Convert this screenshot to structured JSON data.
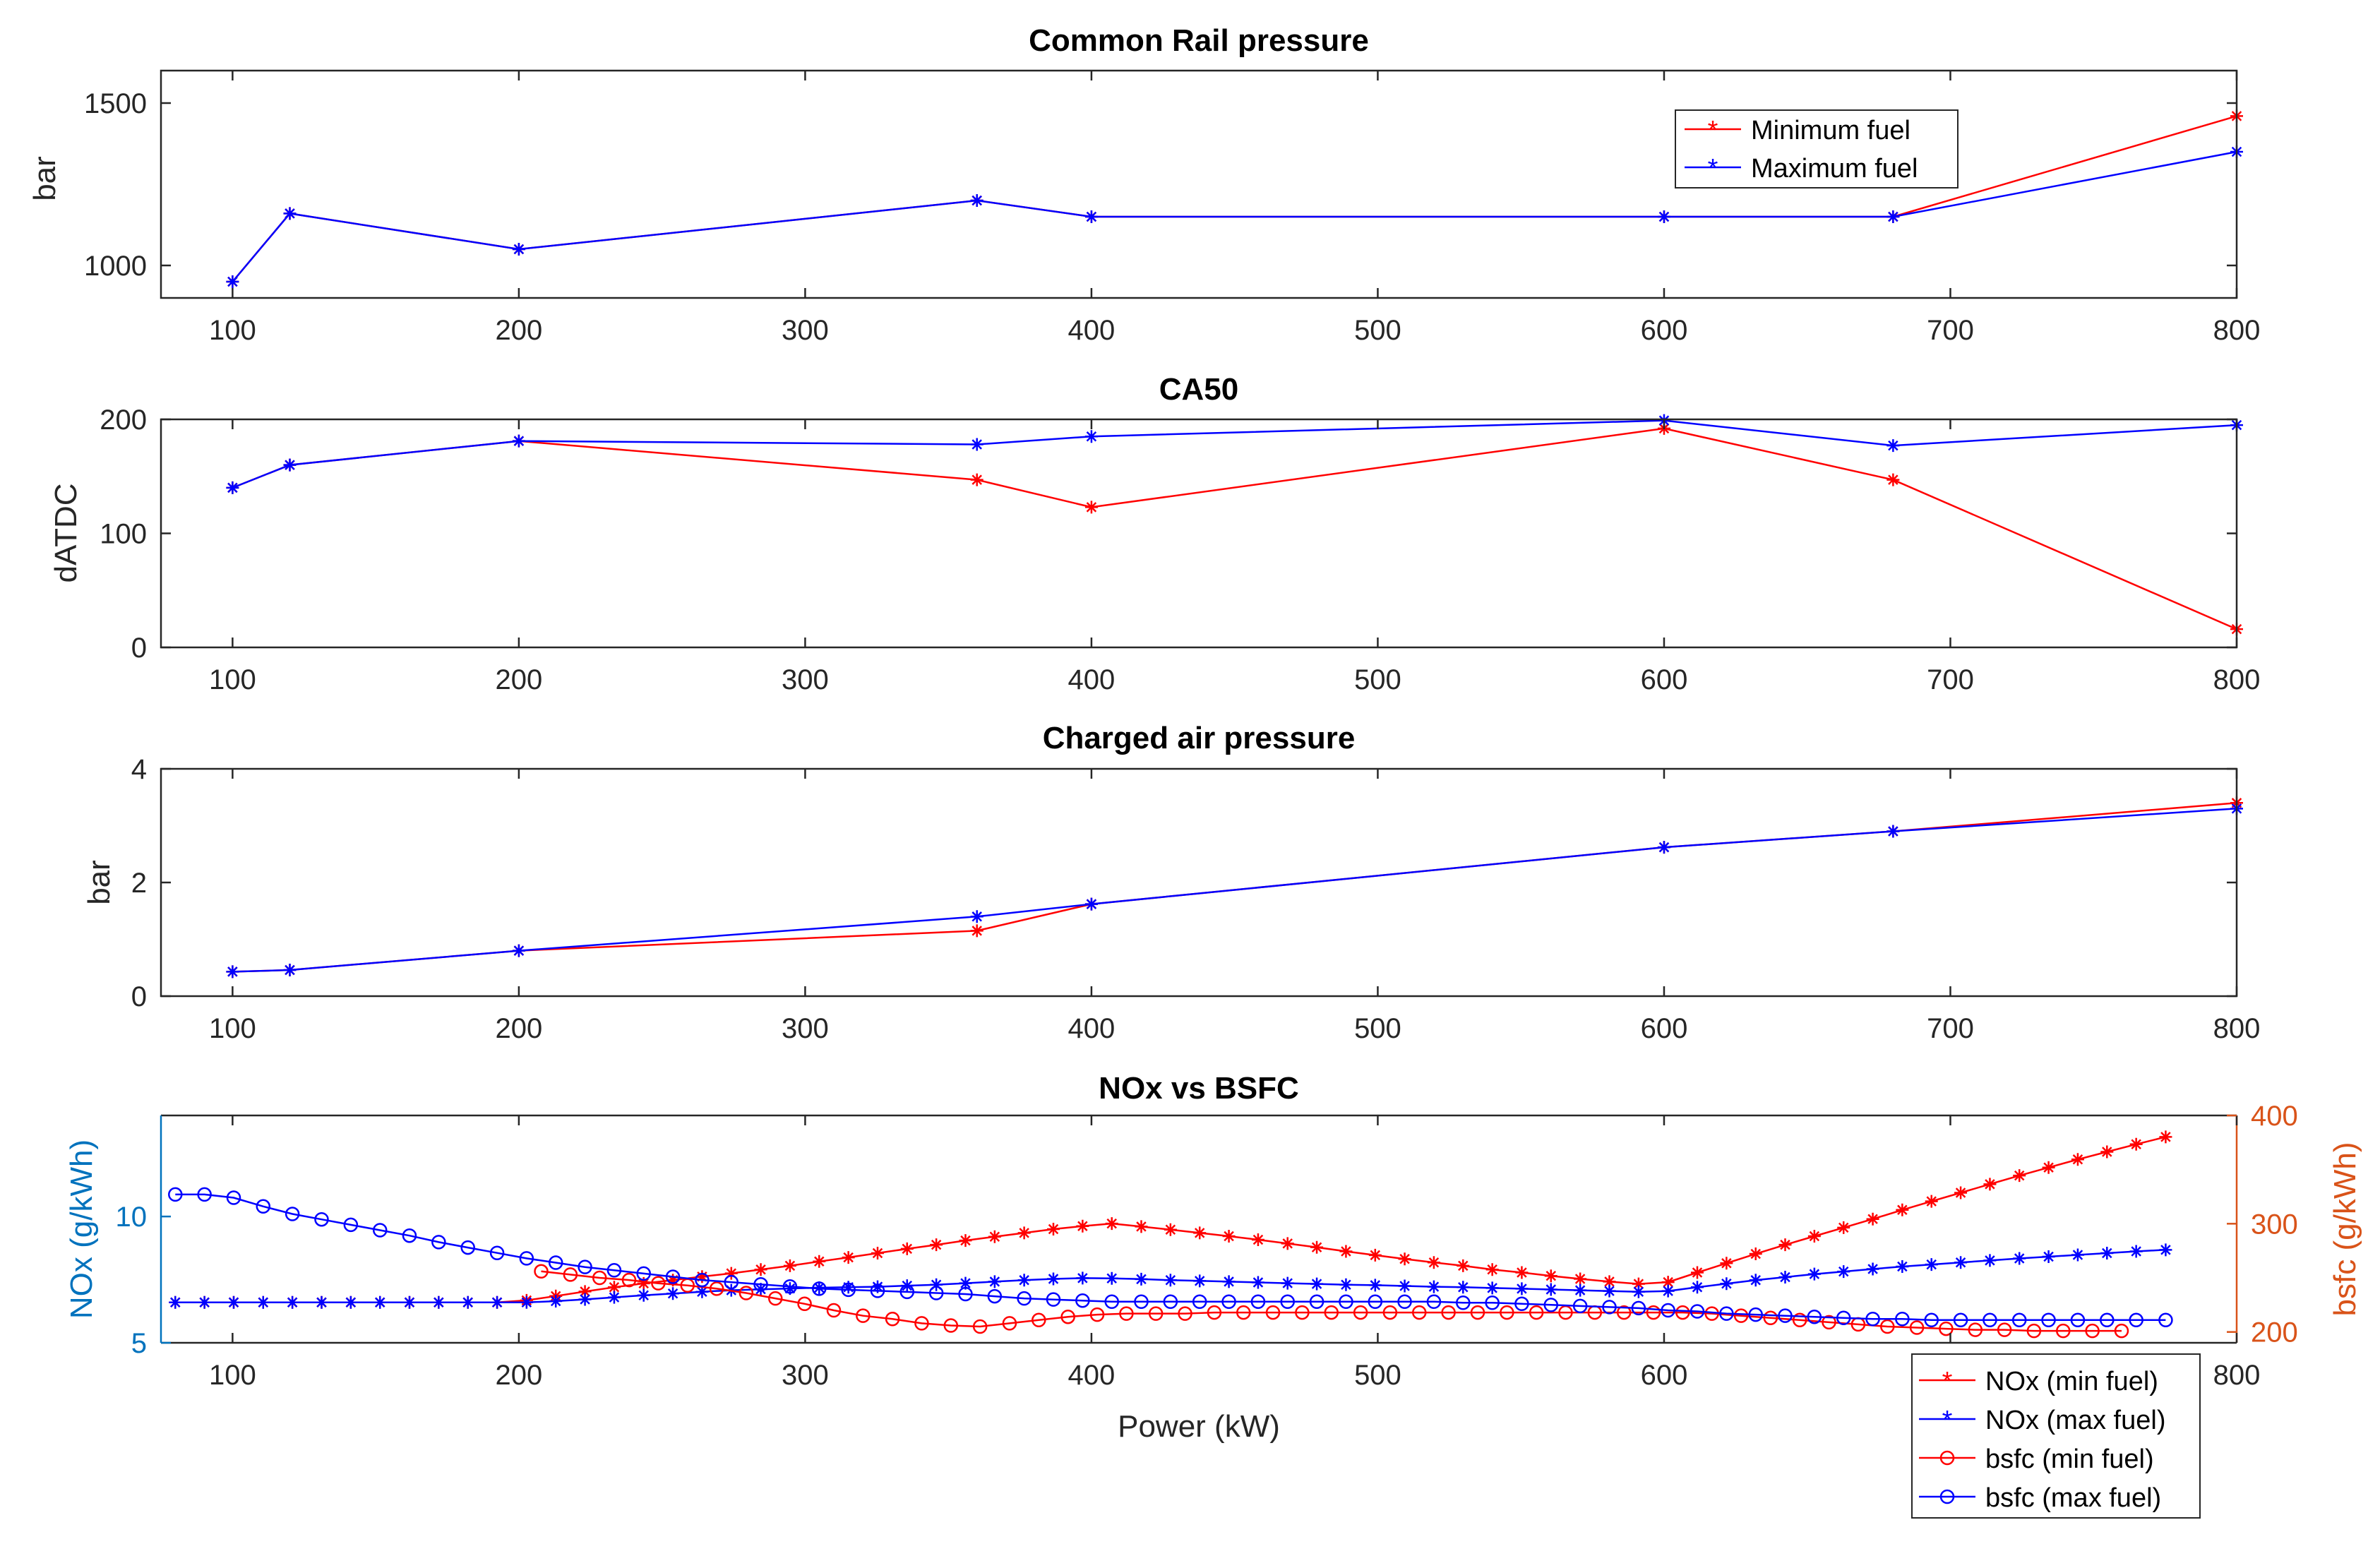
{
  "colors": {
    "min_fuel": "#ff0000",
    "max_fuel": "#0000ff",
    "nox_axis": "#0072bd",
    "bsfc_axis": "#d95319",
    "axis": "#262626"
  },
  "chart_data": [
    {
      "id": "rail",
      "type": "line",
      "title": "Common Rail pressure",
      "xlabel": "",
      "ylabel": "bar",
      "xlim": [
        75,
        800
      ],
      "ylim": [
        900,
        1600
      ],
      "xticks": [
        100,
        200,
        300,
        400,
        500,
        600,
        700,
        800
      ],
      "yticks": [
        1000,
        1500
      ],
      "legend": {
        "position": "top-right",
        "entries": [
          "Minimum fuel",
          "Maximum fuel"
        ]
      },
      "series": [
        {
          "name": "Minimum fuel",
          "color": "#ff0000",
          "marker": "star",
          "x": [
            100,
            120,
            200,
            360,
            400,
            600,
            680,
            800
          ],
          "y": [
            950,
            1160,
            1050,
            1200,
            1150,
            1150,
            1150,
            1460
          ]
        },
        {
          "name": "Maximum fuel",
          "color": "#0000ff",
          "marker": "star",
          "x": [
            100,
            120,
            200,
            360,
            400,
            600,
            680,
            800
          ],
          "y": [
            950,
            1160,
            1050,
            1200,
            1150,
            1150,
            1150,
            1350
          ]
        }
      ]
    },
    {
      "id": "ca50",
      "type": "line",
      "title": "CA50",
      "xlabel": "",
      "ylabel": "dATDC",
      "xlim": [
        75,
        800
      ],
      "ylim": [
        0,
        200
      ],
      "xticks": [
        100,
        200,
        300,
        400,
        500,
        600,
        700,
        800
      ],
      "yticks": [
        0,
        100,
        200
      ],
      "series": [
        {
          "name": "Minimum fuel",
          "color": "#ff0000",
          "marker": "star",
          "x": [
            100,
            120,
            200,
            360,
            400,
            600,
            680,
            800
          ],
          "y": [
            140,
            160,
            181,
            147,
            123,
            192,
            147,
            16
          ]
        },
        {
          "name": "Maximum fuel",
          "color": "#0000ff",
          "marker": "star",
          "x": [
            100,
            120,
            200,
            360,
            400,
            600,
            680,
            800
          ],
          "y": [
            140,
            160,
            181,
            178,
            185,
            199,
            177,
            195
          ]
        }
      ]
    },
    {
      "id": "charge",
      "type": "line",
      "title": "Charged air pressure",
      "xlabel": "",
      "ylabel": "bar",
      "xlim": [
        75,
        800
      ],
      "ylim": [
        0,
        4
      ],
      "xticks": [
        100,
        200,
        300,
        400,
        500,
        600,
        700,
        800
      ],
      "yticks": [
        0,
        2,
        4
      ],
      "series": [
        {
          "name": "Minimum fuel",
          "color": "#ff0000",
          "marker": "star",
          "x": [
            100,
            120,
            200,
            360,
            400,
            600,
            680,
            800
          ],
          "y": [
            0.43,
            0.46,
            0.8,
            1.15,
            1.62,
            2.62,
            2.9,
            3.4
          ]
        },
        {
          "name": "Maximum fuel",
          "color": "#0000ff",
          "marker": "star",
          "x": [
            100,
            120,
            200,
            360,
            400,
            600,
            680,
            800
          ],
          "y": [
            0.43,
            0.46,
            0.8,
            1.4,
            1.62,
            2.62,
            2.9,
            3.3
          ]
        }
      ]
    },
    {
      "id": "noxbsfc",
      "type": "line",
      "title": "NOx vs BSFC",
      "xlabel": "Power (kW)",
      "ylabel": "NOx (g/kWh)",
      "ylabel_right": "bsfc (g/kWh)",
      "xlim": [
        75,
        800
      ],
      "ylim": [
        5,
        14
      ],
      "ylim_right": [
        190,
        400
      ],
      "xticks": [
        100,
        200,
        300,
        400,
        500,
        600,
        700,
        800
      ],
      "yticks": [
        5,
        10
      ],
      "yticks_right": [
        200,
        300,
        400
      ],
      "legend": {
        "position": "bottom-right-outside",
        "entries": [
          "NOx (min fuel)",
          "NOx (max fuel)",
          "bsfc (min fuel)",
          "bsfc (max fuel)"
        ]
      },
      "series": [
        {
          "name": "NOx (min fuel)",
          "color": "#ff0000",
          "marker": "star",
          "axis": "left",
          "x": [
            80,
            90.2,
            100.4,
            110.7,
            120.9,
            131.1,
            141.3,
            151.5,
            161.8,
            172,
            182.2,
            192.4,
            202.7,
            212.9,
            223.1,
            233.3,
            243.6,
            253.8,
            264,
            274.2,
            284.5,
            294.7,
            304.9,
            315.1,
            325.3,
            335.6,
            345.8,
            356,
            366.2,
            376.5,
            386.7,
            396.9,
            407.1,
            417.4,
            427.6,
            437.8,
            448,
            458.2,
            468.5,
            478.7,
            488.9,
            499.1,
            509.4,
            519.6,
            529.8,
            540,
            550.3,
            560.5,
            570.7,
            580.9,
            591.1,
            601.4,
            611.6,
            621.8,
            632,
            642.3,
            652.5,
            662.7,
            672.9,
            683.2,
            693.4,
            703.6,
            713.8,
            724.1,
            734.3,
            744.5,
            754.7,
            764.9,
            775.2
          ],
          "y": [
            6.6,
            6.6,
            6.6,
            6.6,
            6.6,
            6.6,
            6.6,
            6.6,
            6.6,
            6.6,
            6.6,
            6.6,
            6.68,
            6.85,
            7.03,
            7.2,
            7.35,
            7.48,
            7.62,
            7.75,
            7.9,
            8.05,
            8.22,
            8.38,
            8.55,
            8.72,
            8.88,
            9.05,
            9.2,
            9.35,
            9.5,
            9.62,
            9.72,
            9.6,
            9.48,
            9.35,
            9.22,
            9.08,
            8.93,
            8.78,
            8.62,
            8.47,
            8.32,
            8.18,
            8.05,
            7.9,
            7.78,
            7.65,
            7.53,
            7.42,
            7.33,
            7.4,
            7.78,
            8.15,
            8.52,
            8.88,
            9.22,
            9.56,
            9.9,
            10.26,
            10.6,
            10.94,
            11.28,
            11.62,
            11.94,
            12.26,
            12.56,
            12.86,
            13.15
          ]
        },
        {
          "name": "NOx (max fuel)",
          "color": "#0000ff",
          "marker": "star",
          "axis": "left",
          "x": [
            80,
            90.2,
            100.4,
            110.7,
            120.9,
            131.1,
            141.3,
            151.5,
            161.8,
            172,
            182.2,
            192.4,
            202.7,
            212.9,
            223.1,
            233.3,
            243.6,
            253.8,
            264,
            274.2,
            284.5,
            294.7,
            304.9,
            315.1,
            325.3,
            335.6,
            345.8,
            356,
            366.2,
            376.5,
            386.7,
            396.9,
            407.1,
            417.4,
            427.6,
            437.8,
            448,
            458.2,
            468.5,
            478.7,
            488.9,
            499.1,
            509.4,
            519.6,
            529.8,
            540,
            550.3,
            560.5,
            570.7,
            580.9,
            591.1,
            601.4,
            611.6,
            621.8,
            632,
            642.3,
            652.5,
            662.7,
            672.9,
            683.2,
            693.4,
            703.6,
            713.8,
            724.1,
            734.3,
            744.5,
            754.7,
            764.9,
            775.2
          ],
          "y": [
            6.6,
            6.6,
            6.6,
            6.6,
            6.6,
            6.6,
            6.6,
            6.6,
            6.6,
            6.6,
            6.6,
            6.6,
            6.6,
            6.65,
            6.72,
            6.8,
            6.88,
            6.95,
            7.02,
            7.08,
            7.12,
            7.15,
            7.18,
            7.2,
            7.22,
            7.26,
            7.3,
            7.36,
            7.42,
            7.48,
            7.53,
            7.56,
            7.55,
            7.52,
            7.48,
            7.45,
            7.42,
            7.39,
            7.36,
            7.33,
            7.3,
            7.28,
            7.25,
            7.22,
            7.2,
            7.17,
            7.14,
            7.11,
            7.08,
            7.05,
            7.02,
            7.05,
            7.2,
            7.34,
            7.48,
            7.6,
            7.72,
            7.82,
            7.92,
            8.02,
            8.1,
            8.18,
            8.26,
            8.34,
            8.41,
            8.48,
            8.55,
            8.62,
            8.68
          ]
        },
        {
          "name": "bsfc (min fuel)",
          "color": "#ff0000",
          "marker": "circle",
          "axis": "right",
          "x": [
            207.8,
            218,
            228.2,
            238.5,
            248.7,
            258.9,
            269.1,
            279.4,
            289.6,
            299.8,
            310,
            320.2,
            330.5,
            340.7,
            350.9,
            361.1,
            371.4,
            381.6,
            391.8,
            402,
            412.2,
            422.5,
            432.7,
            442.9,
            453.1,
            463.4,
            473.6,
            483.8,
            494,
            504.3,
            514.5,
            524.7,
            534.9,
            545.1,
            555.4,
            565.6,
            575.8,
            586,
            596.3,
            606.5,
            616.7,
            626.9,
            637.2,
            647.4,
            657.6,
            667.8,
            678,
            688.3,
            698.5,
            708.7,
            718.9,
            729.2,
            739.4,
            749.6,
            759.8
          ],
          "y": [
            256,
            253,
            250,
            248,
            245,
            243,
            240,
            236,
            231,
            226,
            220,
            215,
            212,
            208,
            206,
            205,
            208,
            211,
            214,
            216,
            217,
            217,
            217,
            218,
            218,
            218,
            218,
            218,
            218,
            218,
            218,
            218,
            218,
            218,
            218,
            218,
            218,
            218,
            218,
            218,
            217,
            215,
            213,
            211,
            209,
            207,
            205,
            204,
            203,
            202,
            202,
            201,
            201,
            201,
            201
          ]
        },
        {
          "name": "bsfc (max fuel)",
          "color": "#0000ff",
          "marker": "circle",
          "axis": "right",
          "x": [
            80,
            90.2,
            100.4,
            110.7,
            120.9,
            131.1,
            141.3,
            151.5,
            161.8,
            172,
            182.2,
            192.4,
            202.7,
            212.9,
            223.1,
            233.3,
            243.6,
            253.8,
            264,
            274.2,
            284.5,
            294.7,
            304.9,
            315.1,
            325.3,
            335.6,
            345.8,
            356,
            366.2,
            376.5,
            386.7,
            396.9,
            407.1,
            417.4,
            427.6,
            437.8,
            448,
            458.2,
            468.5,
            478.7,
            488.9,
            499.1,
            509.4,
            519.6,
            529.8,
            540,
            550.3,
            560.5,
            570.7,
            580.9,
            591.1,
            601.4,
            611.6,
            621.8,
            632,
            642.3,
            652.5,
            662.7,
            672.9,
            683.2,
            693.4,
            703.6,
            713.8,
            724.1,
            734.3,
            744.5,
            754.7,
            764.9,
            775.2
          ],
          "y": [
            327,
            327,
            324,
            316,
            309,
            304,
            299,
            294,
            289,
            283,
            278,
            273,
            268,
            264,
            260,
            257,
            254,
            251,
            248,
            246,
            244,
            242,
            240,
            239,
            238,
            237,
            236,
            235,
            233,
            231,
            230,
            229,
            228,
            228,
            228,
            228,
            228,
            228,
            228,
            228,
            228,
            228,
            228,
            228,
            227,
            227,
            226,
            225,
            224,
            223,
            222,
            220,
            219,
            217,
            216,
            215,
            214,
            213,
            212,
            212,
            211,
            211,
            211,
            211,
            211,
            211,
            211,
            211,
            211
          ]
        }
      ]
    }
  ]
}
